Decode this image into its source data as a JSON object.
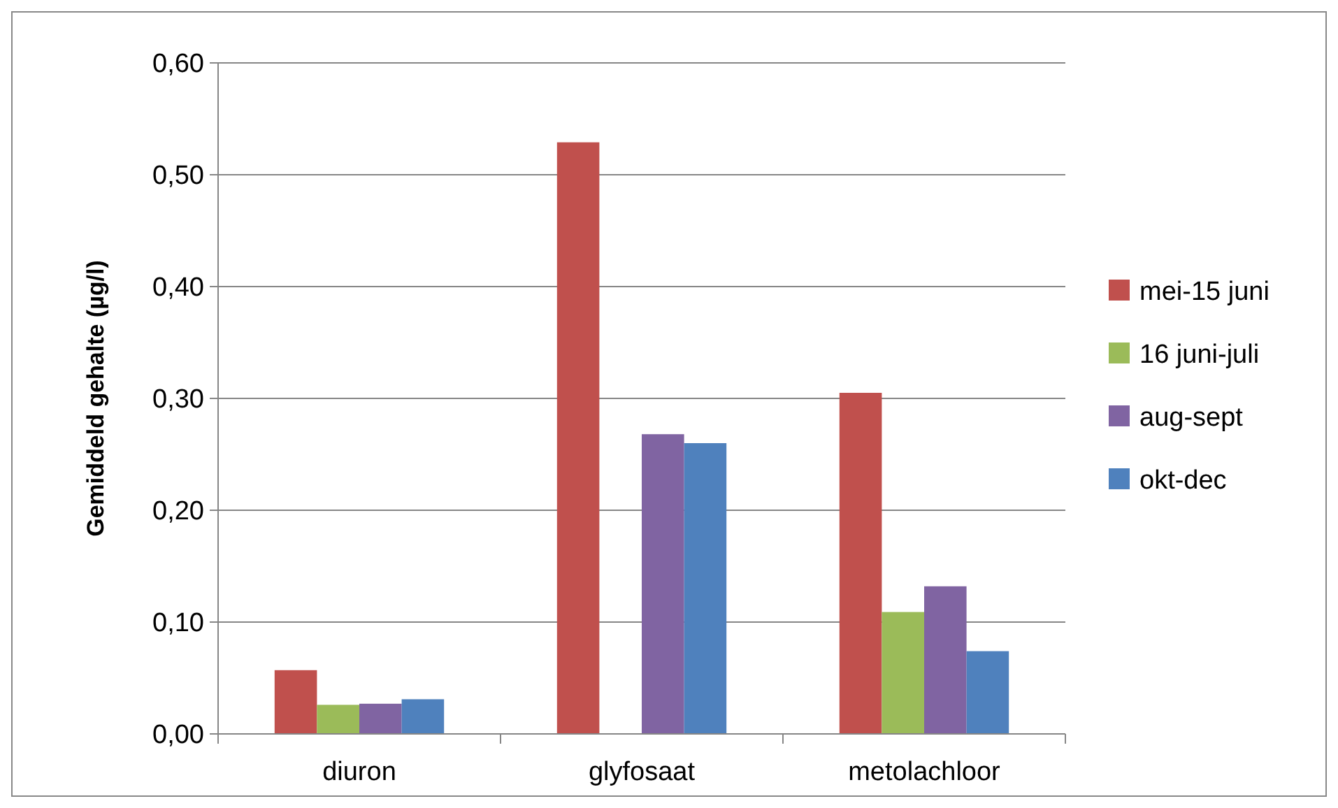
{
  "chart_data": {
    "type": "bar",
    "ylabel": "Gemiddeld gehalte  (µg/l)",
    "categories": [
      "diuron",
      "glyfosaat",
      "metolachloor"
    ],
    "series": [
      {
        "name": "mei-15 juni",
        "color": "#c0504d",
        "values": [
          0.057,
          0.529,
          0.305
        ]
      },
      {
        "name": "16 juni-juli",
        "color": "#9bbb59",
        "values": [
          0.026,
          null,
          0.109
        ]
      },
      {
        "name": "aug-sept",
        "color": "#8064a2",
        "values": [
          0.027,
          0.268,
          0.132
        ]
      },
      {
        "name": "okt-dec",
        "color": "#4f81bd",
        "values": [
          0.031,
          0.26,
          0.074
        ]
      }
    ],
    "ylim": [
      0,
      0.6
    ],
    "yticks": [
      {
        "value": 0,
        "label": "0,00"
      },
      {
        "value": 0.1,
        "label": "0,10"
      },
      {
        "value": 0.2,
        "label": "0,20"
      },
      {
        "value": 0.3,
        "label": "0,30"
      },
      {
        "value": 0.4,
        "label": "0,40"
      },
      {
        "value": 0.5,
        "label": "0,50"
      },
      {
        "value": 0.6,
        "label": "0,60"
      }
    ],
    "grid": "y",
    "legend": "right"
  }
}
